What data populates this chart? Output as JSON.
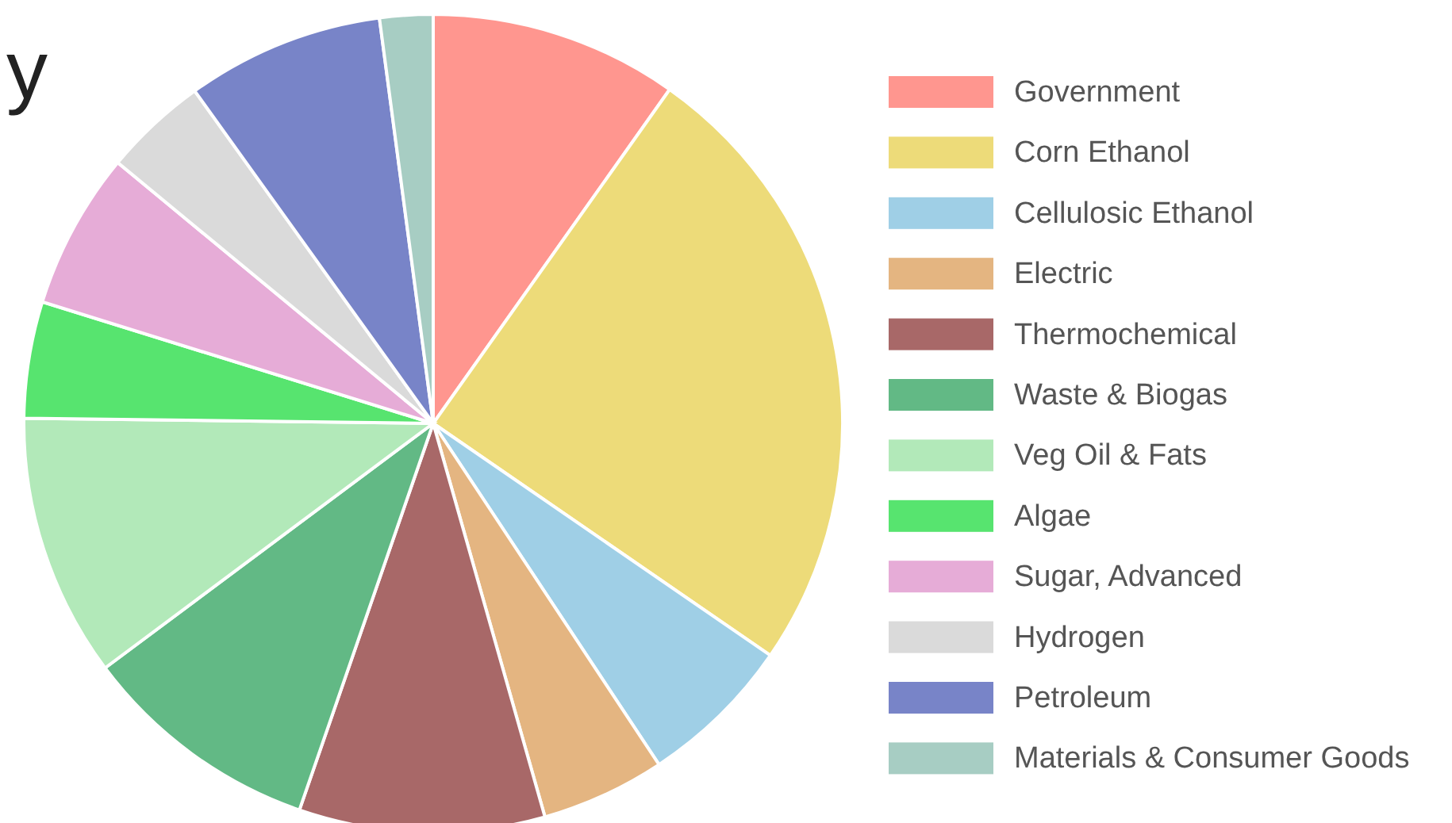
{
  "chart_data": {
    "type": "pie",
    "title": "y",
    "legend": "right",
    "categories": [
      "Government",
      "Corn Ethanol",
      "Cellulosic Ethanol",
      "Electric",
      "Thermochemical",
      "Waste & Biogas",
      "Veg Oil & Fats",
      "Algae",
      "Sugar, Advanced",
      "Hydrogen",
      "Petroleum",
      "Materials & Consumer Goods"
    ],
    "values": [
      9.8,
      24.8,
      6.1,
      4.9,
      9.7,
      9.5,
      10.4,
      4.6,
      6.2,
      4.1,
      7.8,
      2.1
    ],
    "colors": [
      "#ff968f",
      "#eddb79",
      "#9fcfe6",
      "#e4b581",
      "#a86868",
      "#62b985",
      "#b2e9b9",
      "#57e46f",
      "#e6acd7",
      "#dadada",
      "#7884c8",
      "#a7cdc3"
    ]
  }
}
